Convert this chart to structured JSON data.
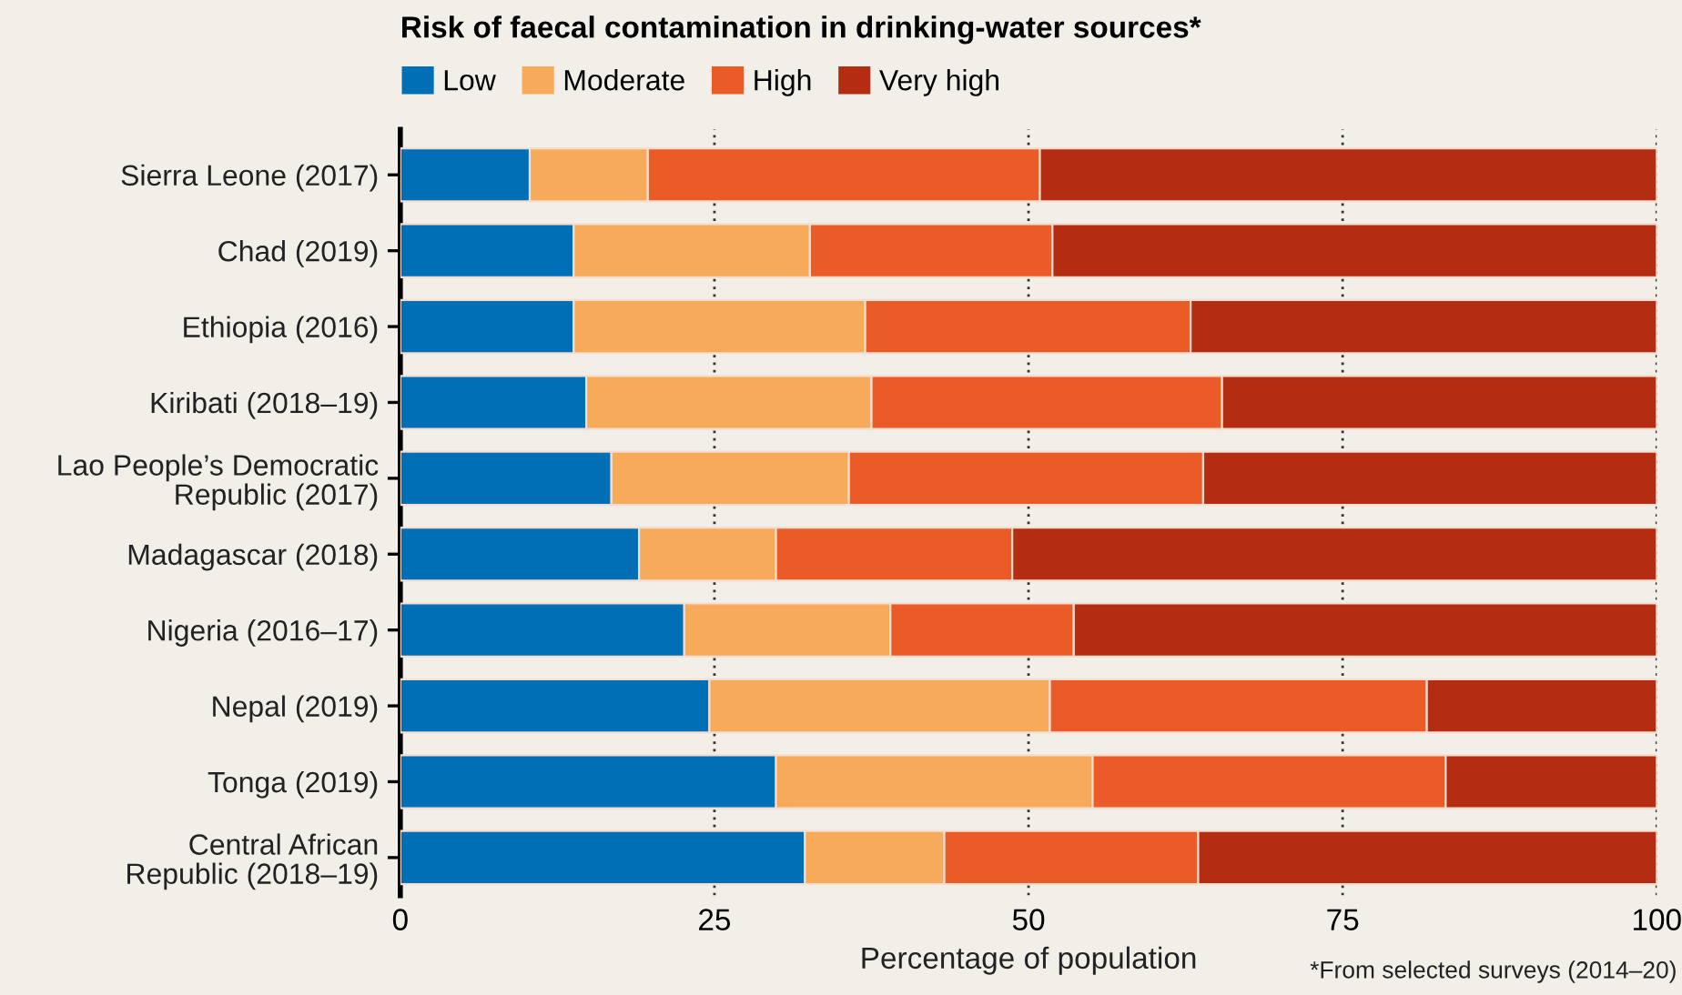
{
  "chart_data": {
    "type": "bar",
    "orientation": "horizontal",
    "stacked": true,
    "title": "Risk of faecal contamination in drinking-water sources*",
    "xlabel": "Percentage of population",
    "annotations": [
      "*From selected surveys (2014–20)"
    ],
    "categories": [
      "Sierra Leone (2017)",
      "Chad (2019)",
      "Ethiopia (2016)",
      "Kiribati (2018–19)",
      "Lao People’s Democratic\nRepublic (2017)",
      "Madagascar (2018)",
      "Nigeria (2016–17)",
      "Nepal (2019)",
      "Tonga (2019)",
      "Central African\nRepublic (2018–19)"
    ],
    "series": [
      {
        "name": "Low",
        "color": "#006fb6",
        "values": [
          10.3,
          13.8,
          13.8,
          14.8,
          16.8,
          19.0,
          22.6,
          24.6,
          29.9,
          32.2
        ]
      },
      {
        "name": "Moderate",
        "color": "#f6aa5a",
        "values": [
          9.4,
          18.8,
          23.2,
          22.7,
          18.9,
          10.9,
          16.4,
          27.1,
          25.2,
          11.1
        ]
      },
      {
        "name": "High",
        "color": "#eb5b27",
        "values": [
          31.2,
          19.3,
          25.9,
          27.9,
          28.2,
          18.8,
          14.6,
          30.0,
          28.1,
          20.2
        ]
      },
      {
        "name": "Very high",
        "color": "#b42d12",
        "values": [
          49.1,
          48.1,
          37.1,
          34.6,
          36.1,
          51.3,
          46.4,
          18.3,
          16.8,
          36.5
        ]
      }
    ],
    "xlim": [
      0,
      100
    ],
    "xticks": [
      0,
      25,
      50,
      75,
      100
    ],
    "grid": "x",
    "legend": "top left"
  }
}
